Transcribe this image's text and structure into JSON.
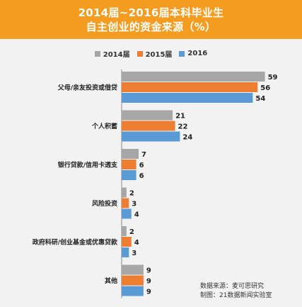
{
  "chart_data": {
    "type": "bar",
    "orientation": "horizontal",
    "title_lines": [
      "2014届~2016届本科毕业生",
      "自主创业的资金来源（%）"
    ],
    "categories": [
      "父母/亲友投资或借贷",
      "个人积蓄",
      "银行贷款/信用卡透支",
      "风险投资",
      "政府科研/创业基金或优惠贷款",
      "其他"
    ],
    "series": [
      {
        "name": "2014届",
        "color": "#a6a6a6",
        "values": [
          59,
          21,
          7,
          2,
          2,
          9
        ]
      },
      {
        "name": "2015届",
        "color": "#ed7d31",
        "values": [
          56,
          22,
          6,
          3,
          4,
          9
        ]
      },
      {
        "name": "2016",
        "color": "#5b9bd5",
        "values": [
          54,
          24,
          6,
          4,
          3,
          9
        ]
      }
    ],
    "xlim": [
      0,
      60
    ],
    "legend_position": "top-center",
    "grid": false
  },
  "source_lines": [
    "数据来源：麦可思研究",
    "制图：21数据新闻实验室"
  ],
  "colors": {
    "header_bg": "#f39c1f",
    "background": "#f2f2f2",
    "axis": "#888888"
  }
}
